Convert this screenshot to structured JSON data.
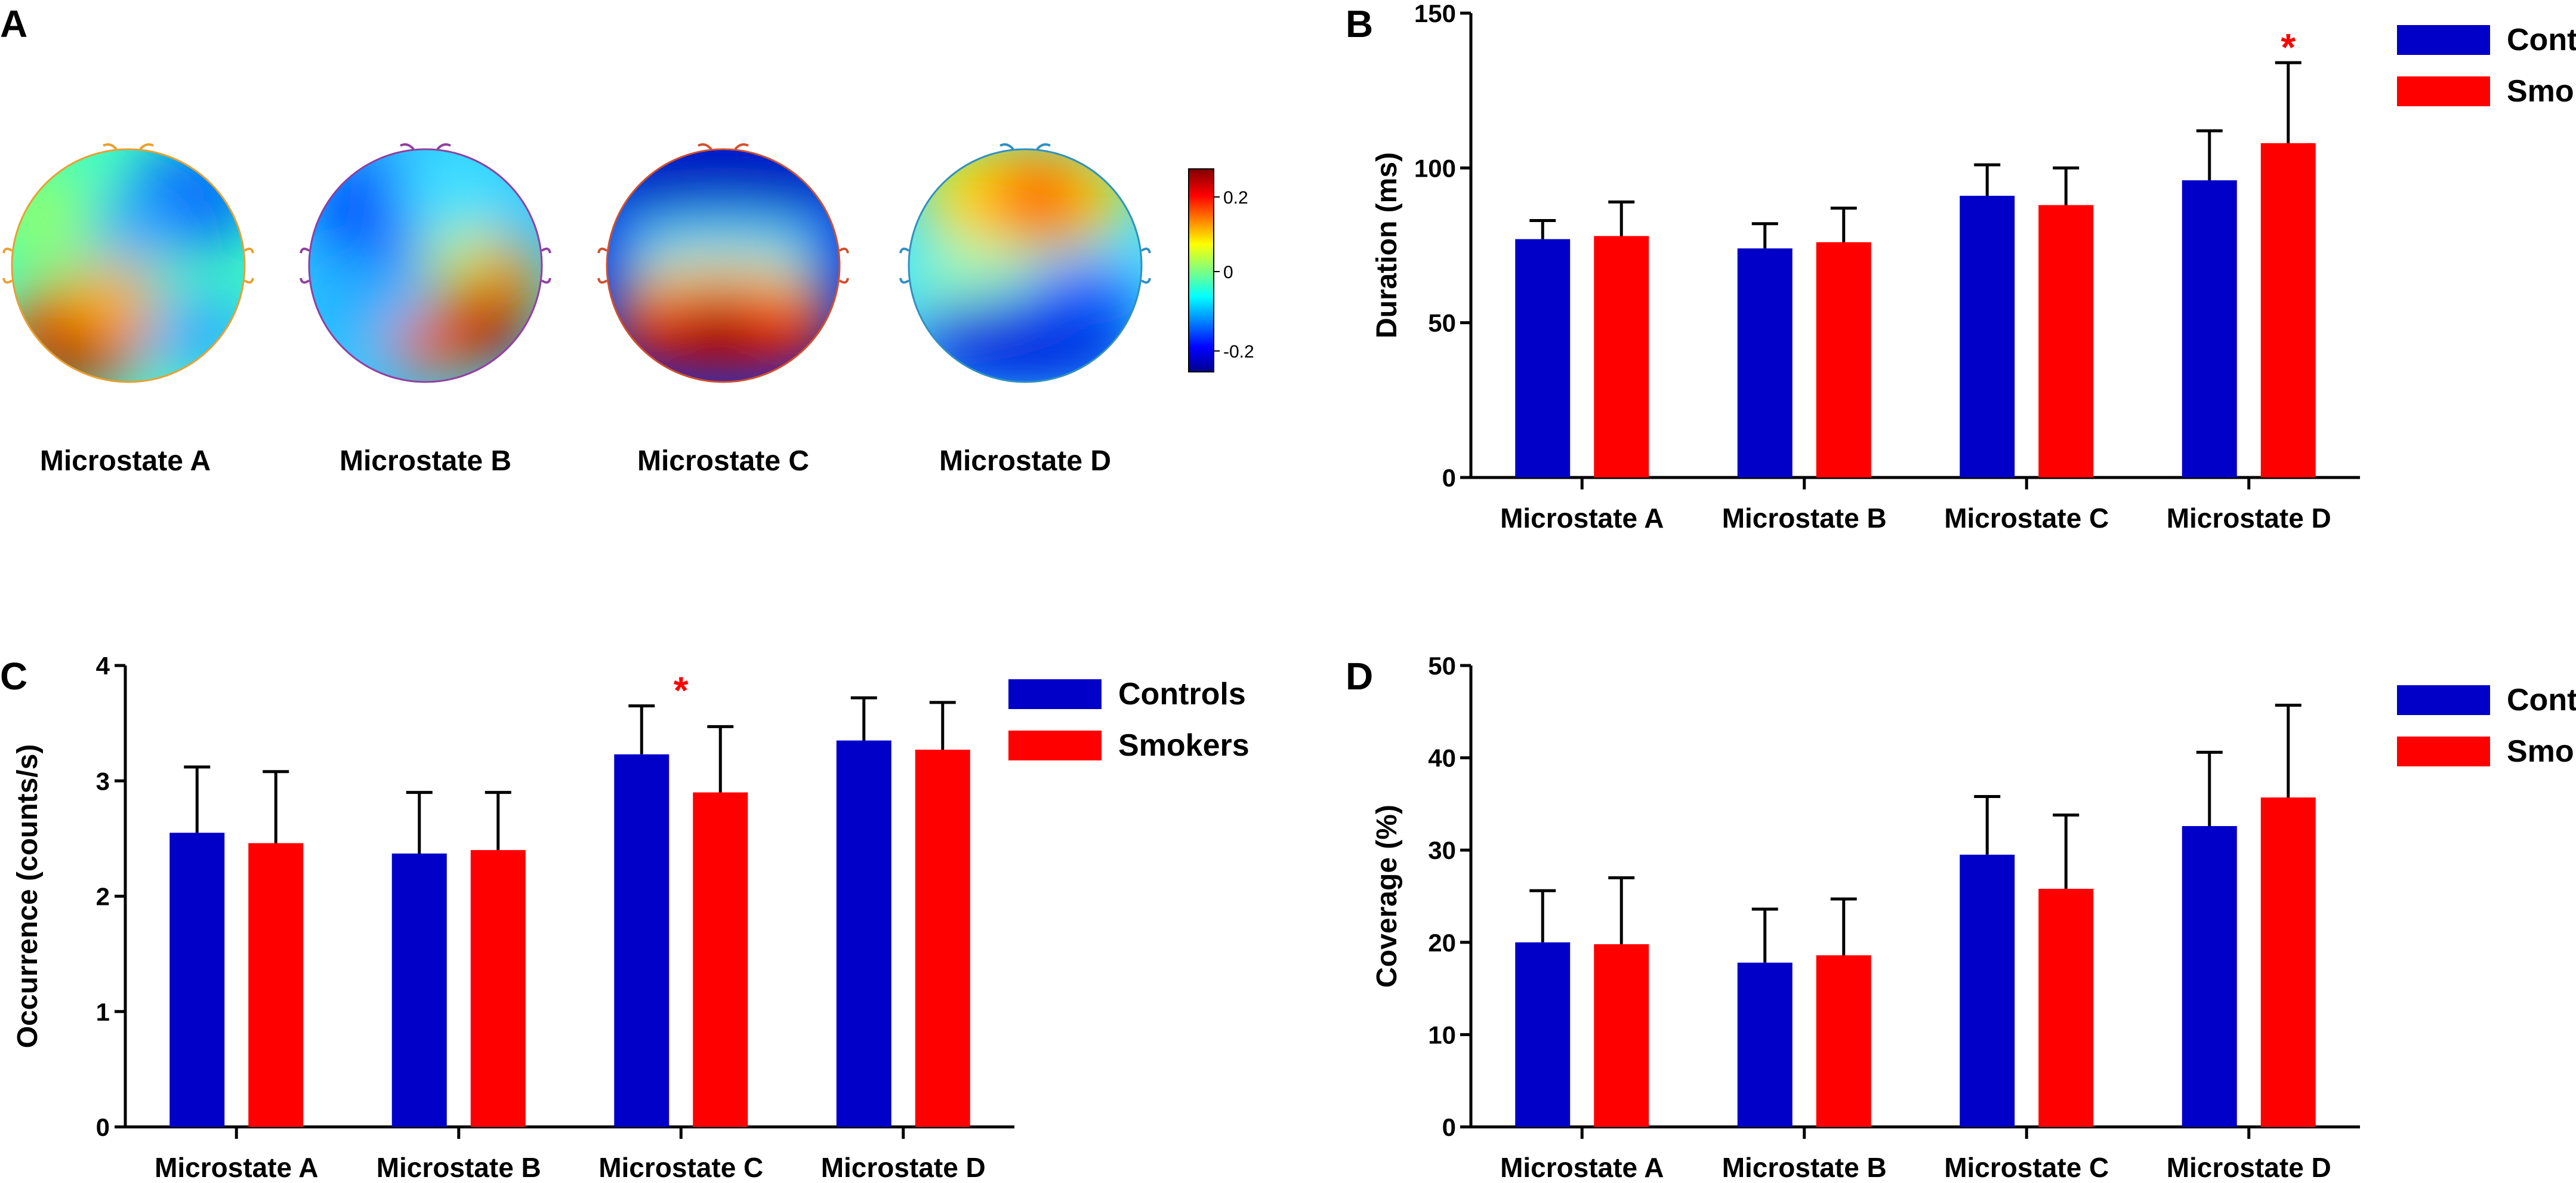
{
  "panels": {
    "a": {
      "letter": "A"
    },
    "b": {
      "letter": "B"
    },
    "c": {
      "letter": "C"
    },
    "d": {
      "letter": "D"
    }
  },
  "topomaps": {
    "labels": [
      "Microstate A",
      "Microstate B",
      "Microstate C",
      "Microstate D"
    ],
    "colorbar": {
      "max_label": "0.2",
      "mid_label": "0",
      "min_label": "-0.2",
      "range": [
        -0.25,
        0.25
      ]
    }
  },
  "colors": {
    "controls": "#0000c8",
    "smokers": "#ff0000",
    "significance": "#ff0000"
  },
  "chart_data": [
    {
      "panel": "B",
      "type": "bar",
      "categories": [
        "Microstate A",
        "Microstate B",
        "Microstate C",
        "Microstate D"
      ],
      "series": [
        {
          "name": "Controls",
          "values": [
            77,
            74,
            91,
            96
          ],
          "errors": [
            6,
            8,
            10,
            16
          ]
        },
        {
          "name": "Smokers",
          "values": [
            78,
            76,
            88,
            108
          ],
          "errors": [
            11,
            11,
            12,
            26
          ]
        }
      ],
      "ylabel": "Duration (ms)",
      "ylim": [
        0,
        150
      ],
      "yticks": [
        0,
        50,
        100,
        150
      ],
      "significance": [
        {
          "category": "Microstate D",
          "series": "Smokers",
          "marker": "*"
        }
      ],
      "legend": "top-right"
    },
    {
      "panel": "C",
      "type": "bar",
      "categories": [
        "Microstate A",
        "Microstate B",
        "Microstate C",
        "Microstate D"
      ],
      "series": [
        {
          "name": "Controls",
          "values": [
            2.55,
            2.37,
            3.23,
            3.35
          ],
          "errors": [
            0.57,
            0.53,
            0.42,
            0.37
          ]
        },
        {
          "name": "Smokers",
          "values": [
            2.46,
            2.4,
            2.9,
            3.27
          ],
          "errors": [
            0.62,
            0.5,
            0.57,
            0.41
          ]
        }
      ],
      "ylabel": "Occurrence (counts/s)",
      "ylim": [
        0,
        4
      ],
      "yticks": [
        0,
        1,
        2,
        3,
        4
      ],
      "significance": [
        {
          "category": "Microstate C",
          "series": "Between",
          "marker": "*"
        }
      ],
      "legend": "top-right"
    },
    {
      "panel": "D",
      "type": "bar",
      "categories": [
        "Microstate A",
        "Microstate B",
        "Microstate C",
        "Microstate D"
      ],
      "series": [
        {
          "name": "Controls",
          "values": [
            20,
            17.8,
            29.5,
            32.6
          ],
          "errors": [
            5.6,
            5.8,
            6.3,
            8.0
          ]
        },
        {
          "name": "Smokers",
          "values": [
            19.8,
            18.6,
            25.8,
            35.7
          ],
          "errors": [
            7.2,
            6.1,
            8.0,
            10.0
          ]
        }
      ],
      "ylabel": "Coverage (%)",
      "ylim": [
        0,
        50
      ],
      "yticks": [
        0,
        10,
        20,
        30,
        40,
        50
      ],
      "significance": [],
      "legend": "top-right"
    }
  ]
}
